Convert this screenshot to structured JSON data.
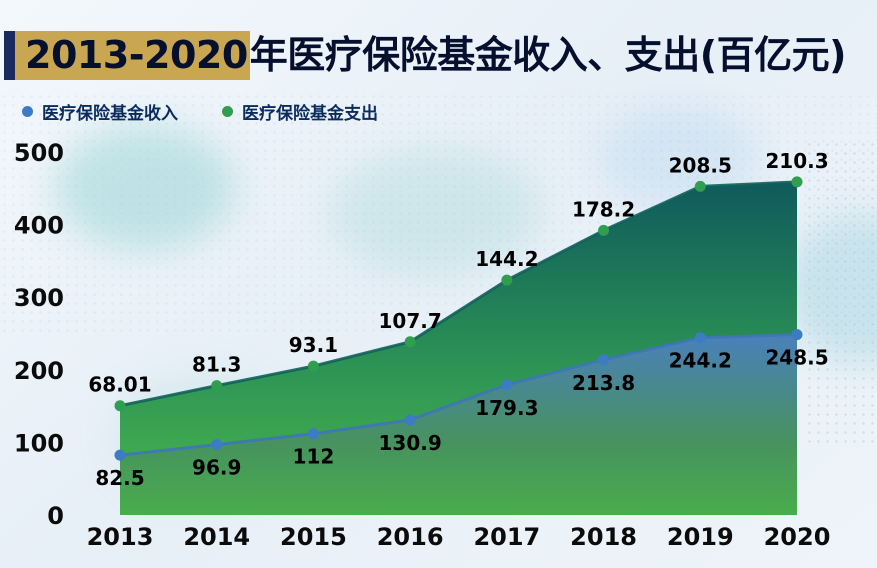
{
  "page": {
    "title_highlight": "2013-2020",
    "title_rest": "年医疗保险基金收入、支出(百亿元)"
  },
  "legend": {
    "items": [
      {
        "key": "income",
        "label": "医疗保险基金收入",
        "color": "#3b7cc4"
      },
      {
        "key": "expenditure",
        "label": "医疗保险基金支出",
        "color": "#2f9e4f"
      }
    ]
  },
  "chart_data": {
    "type": "area",
    "stacked": true,
    "title": "2013-2020年医疗保险基金收入、支出(百亿元)",
    "unit": "百亿元",
    "categories": [
      "2013",
      "2014",
      "2015",
      "2016",
      "2017",
      "2018",
      "2019",
      "2020"
    ],
    "series": [
      {
        "name": "医疗保险基金收入",
        "values": [
          82.5,
          96.9,
          112,
          130.9,
          179.3,
          213.8,
          244.2,
          248.5
        ],
        "color": "#3b7cc4"
      },
      {
        "name": "医疗保险基金支出",
        "values": [
          68.01,
          81.3,
          93.1,
          107.7,
          144.2,
          178.2,
          208.5,
          210.3
        ],
        "color": "#2f9e4f"
      }
    ],
    "yticks": [
      0,
      100,
      200,
      300,
      400,
      500
    ],
    "ylim": [
      0,
      500
    ],
    "xlabel": "",
    "ylabel": "",
    "grid": false,
    "legend_position": "top-left"
  },
  "colors": {
    "accent_bar": "#182a5e",
    "title_highlight": "#c9a752",
    "title_text": "#05102e",
    "legend_text": "#0b2b5e",
    "axis_text": "#0b0b0b",
    "income_line": "#3d77b6",
    "income_point": "#3b7cc4",
    "expenditure_line": "#10605a",
    "expenditure_point": "#2f9e4f",
    "blue_area_top": "#4a80bb",
    "blue_area_mid": "#47925f",
    "blue_area_bottom": "#48ad4b",
    "green_area_top": "#0f5a5c",
    "green_area_mid": "#2c9355",
    "green_area_bottom": "#4cb84e",
    "background": "#edf3f9"
  }
}
